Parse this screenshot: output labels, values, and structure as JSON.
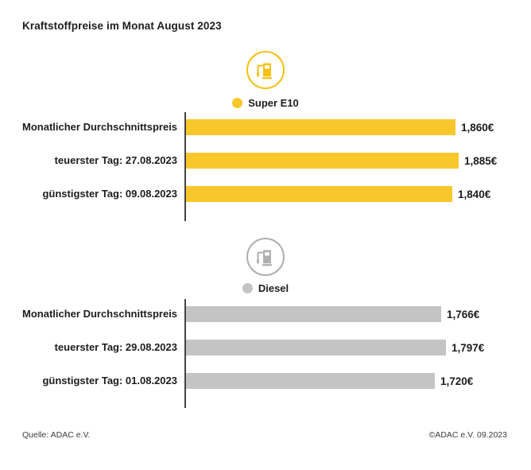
{
  "title": "Kraftstoffpreise im Monat August 2023",
  "footer": {
    "source": "Quelle: ADAC e.V.",
    "copyright": "©ADAC e.V. 09.2023"
  },
  "chart_data": [
    {
      "type": "bar",
      "fuel": "Super E10",
      "icon": "fuel-pump",
      "color": "#F8C72C",
      "icon_color": "#F5C112",
      "unit": "€ pro Liter",
      "categories": [
        "Monatlicher Durchschnittspreis",
        "teuerster Tag: 27.08.2023",
        "günstigster Tag: 09.08.2023"
      ],
      "values": [
        1.86,
        1.885,
        1.84
      ],
      "rows": [
        {
          "label": "Monatlicher Durchschnittspreis",
          "value": 1.86,
          "value_label": "1,860€"
        },
        {
          "label": "teuerster Tag: 27.08.2023",
          "value": 1.885,
          "value_label": "1,885€"
        },
        {
          "label": "günstigster Tag: 09.08.2023",
          "value": 1.84,
          "value_label": "1,840€"
        }
      ]
    },
    {
      "type": "bar",
      "fuel": "Diesel",
      "icon": "fuel-pump",
      "color": "#C4C4C4",
      "icon_color": "#AFAFAF",
      "unit": "€ pro Liter",
      "categories": [
        "Monatlicher Durchschnittspreis",
        "teuerster Tag: 29.08.2023",
        "günstigster Tag: 01.08.2023"
      ],
      "values": [
        1.766,
        1.797,
        1.72
      ],
      "rows": [
        {
          "label": "Monatlicher Durchschnittspreis",
          "value": 1.766,
          "value_label": "1,766€"
        },
        {
          "label": "teuerster Tag: 29.08.2023",
          "value": 1.797,
          "value_label": "1,797€"
        },
        {
          "label": "günstigster Tag: 01.08.2023",
          "value": 1.72,
          "value_label": "1,720€"
        }
      ]
    }
  ]
}
